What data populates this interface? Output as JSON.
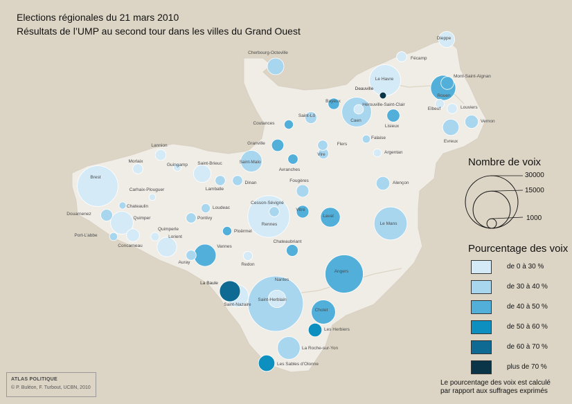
{
  "title": {
    "line1": "Elections régionales du 21 mars 2010",
    "line2": "Résultats de l’UMP au second tour dans les villes du Grand Ouest"
  },
  "colors": {
    "background": "#dcd5c5",
    "land": "#f0ece6",
    "class_0_30": "#d4eaf6",
    "class_30_40": "#a9d6ef",
    "class_40_50": "#52afd9",
    "class_50_60": "#0d8fbf",
    "class_60_70": "#0e6a92",
    "class_70_plus": "#0a3447"
  },
  "legend": {
    "size_title": "Nombre de voix",
    "size_values": [
      "30000",
      "15000",
      "1000"
    ],
    "pct_title": "Pourcentage des voix",
    "pct_classes": [
      {
        "label": "de 0 à 30 %",
        "color": "#d4eaf6"
      },
      {
        "label": "de 30 à 40 %",
        "color": "#a9d6ef"
      },
      {
        "label": "de 40 à 50 %",
        "color": "#52afd9"
      },
      {
        "label": "de 50 à 60 %",
        "color": "#0d8fbf"
      },
      {
        "label": "de 60 à 70 %",
        "color": "#0e6a92"
      },
      {
        "label": "plus de 70 %",
        "color": "#0a3447"
      }
    ],
    "note_line1": "Le pourcentage des voix est calculé",
    "note_line2": "par rapport aux suffrages exprimés"
  },
  "credits": {
    "title": "ATLAS POLITIQUE",
    "text": "© P. Buléon, F. Turbout, UCBN, 2010"
  },
  "cities": [
    {
      "name": "Dieppe",
      "votes": 2800,
      "cls": 0
    },
    {
      "name": "Fécamp",
      "votes": 1100,
      "cls": 0
    },
    {
      "name": "Cherbourg-Octeville",
      "votes": 3000,
      "cls": 1
    },
    {
      "name": "Le Havre",
      "votes": 10500,
      "cls": 0
    },
    {
      "name": "Deauville",
      "votes": 500,
      "cls": 5
    },
    {
      "name": "Mont-Saint-Aignan",
      "votes": 1800,
      "cls": 2
    },
    {
      "name": "Rouen",
      "votes": 6800,
      "cls": 2
    },
    {
      "name": "Bayeux",
      "votes": 1400,
      "cls": 2
    },
    {
      "name": "Hérouville-Saint-Clair",
      "votes": 1000,
      "cls": 0
    },
    {
      "name": "Caen",
      "votes": 9500,
      "cls": 1
    },
    {
      "name": "Elbeuf",
      "votes": 900,
      "cls": 0
    },
    {
      "name": "Louviers",
      "votes": 1100,
      "cls": 0
    },
    {
      "name": "Saint-Lô",
      "votes": 1500,
      "cls": 1
    },
    {
      "name": "Lisieux",
      "votes": 1800,
      "cls": 2
    },
    {
      "name": "Vernon",
      "votes": 1900,
      "cls": 1
    },
    {
      "name": "Coutances",
      "votes": 900,
      "cls": 2
    },
    {
      "name": "Falaise",
      "votes": 700,
      "cls": 1
    },
    {
      "name": "Evreux",
      "votes": 2900,
      "cls": 1
    },
    {
      "name": "Granville",
      "votes": 1600,
      "cls": 2
    },
    {
      "name": "Flers",
      "votes": 1100,
      "cls": 1
    },
    {
      "name": "Vire",
      "votes": 1200,
      "cls": 1
    },
    {
      "name": "Argentan",
      "votes": 700,
      "cls": 0
    },
    {
      "name": "Lannion",
      "votes": 1300,
      "cls": 0
    },
    {
      "name": "Saint-Malo",
      "votes": 5000,
      "cls": 1
    },
    {
      "name": "Avranches",
      "votes": 1100,
      "cls": 2
    },
    {
      "name": "Morlaix",
      "votes": 1100,
      "cls": 0
    },
    {
      "name": "Guingamp",
      "votes": 650,
      "cls": 0
    },
    {
      "name": "Saint-Brieuc",
      "votes": 3300,
      "cls": 0
    },
    {
      "name": "Brest",
      "votes": 18000,
      "cls": 0
    },
    {
      "name": "Lamballe",
      "votes": 1100,
      "cls": 1
    },
    {
      "name": "Dinan",
      "votes": 1100,
      "cls": 1
    },
    {
      "name": "Alençon",
      "votes": 2000,
      "cls": 1
    },
    {
      "name": "Carhaix-Plouguer",
      "votes": 500,
      "cls": 0
    },
    {
      "name": "Fougères",
      "votes": 1700,
      "cls": 1
    },
    {
      "name": "Chateaulin",
      "votes": 550,
      "cls": 1
    },
    {
      "name": "Douarnenez",
      "votes": 1500,
      "cls": 1
    },
    {
      "name": "Loudeac",
      "votes": 900,
      "cls": 1
    },
    {
      "name": "Cesson-Sévigné",
      "votes": 1100,
      "cls": 1
    },
    {
      "name": "Vitré",
      "votes": 1700,
      "cls": 2
    },
    {
      "name": "Laval",
      "votes": 4200,
      "cls": 2
    },
    {
      "name": "Quimper",
      "votes": 5600,
      "cls": 0
    },
    {
      "name": "Pontivy",
      "votes": 1100,
      "cls": 1
    },
    {
      "name": "Rennes",
      "votes": 19000,
      "cls": 0
    },
    {
      "name": "Le Mans",
      "votes": 11800,
      "cls": 1
    },
    {
      "name": "Ploërmel",
      "votes": 900,
      "cls": 2
    },
    {
      "name": "Quimperle",
      "votes": 800,
      "cls": 0
    },
    {
      "name": "Port-L’abbe",
      "votes": 700,
      "cls": 1
    },
    {
      "name": "Concarneau",
      "votes": 1800,
      "cls": 0
    },
    {
      "name": "Lorient",
      "votes": 4200,
      "cls": 0
    },
    {
      "name": "Chateaubriant",
      "votes": 1500,
      "cls": 2
    },
    {
      "name": "Vannes",
      "votes": 5300,
      "cls": 2
    },
    {
      "name": "Auray",
      "votes": 1100,
      "cls": 1
    },
    {
      "name": "Redon",
      "votes": 900,
      "cls": 0
    },
    {
      "name": "Angers",
      "votes": 15700,
      "cls": 2
    },
    {
      "name": "La Baule",
      "votes": 4700,
      "cls": 4
    },
    {
      "name": "Saint-Nazaire",
      "votes": 5300,
      "cls": 0
    },
    {
      "name": "Nantes",
      "votes": 33000,
      "cls": 1
    },
    {
      "name": "Saint-Herblain",
      "votes": 3300,
      "cls": 0
    },
    {
      "name": "Cholet",
      "votes": 6300,
      "cls": 2
    },
    {
      "name": "Les Herbiers",
      "votes": 2000,
      "cls": 3
    },
    {
      "name": "La Roche-sur-Yon",
      "votes": 5600,
      "cls": 1
    },
    {
      "name": "Les Sables d’Olonne",
      "votes": 2900,
      "cls": 3
    }
  ]
}
